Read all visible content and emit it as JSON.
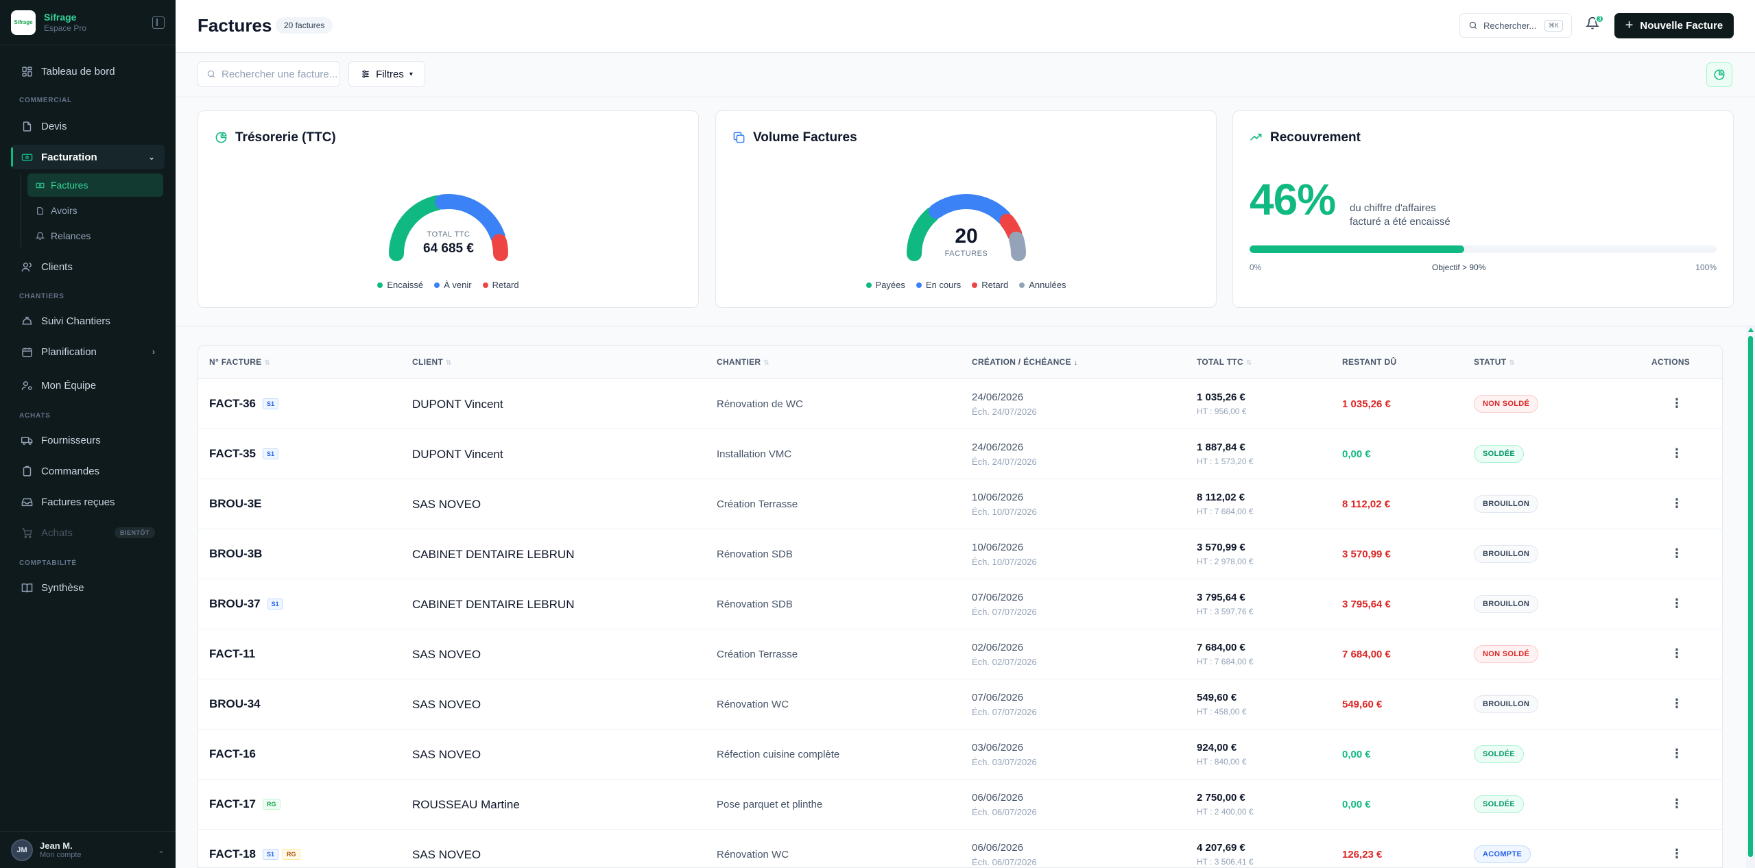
{
  "brand": {
    "name": "Sifrage",
    "subtitle": "Espace Pro",
    "logo_text": "Sifrage"
  },
  "sidebar": {
    "dashboard": "Tableau de bord",
    "section_commercial": "COMMERCIAL",
    "devis": "Devis",
    "facturation": "Facturation",
    "factures": "Factures",
    "avoirs": "Avoirs",
    "relances": "Relances",
    "clients": "Clients",
    "section_chantiers": "CHANTIERS",
    "suivi_chantiers": "Suivi Chantiers",
    "planification": "Planification",
    "equipe": "Mon Équipe",
    "section_achats": "ACHATS",
    "fournisseurs": "Fournisseurs",
    "commandes": "Commandes",
    "factures_recues": "Factures reçues",
    "achats": "Achats",
    "bientot": "BIENTÔT",
    "section_compta": "COMPTABILITÉ",
    "synthese": "Synthèse"
  },
  "user": {
    "initials": "JM",
    "name": "Jean M.",
    "subtitle": "Mon compte"
  },
  "header": {
    "title": "Factures",
    "count": "20 factures",
    "search_label": "Rechercher...",
    "search_kbd": "⌘K",
    "notif_count": "3",
    "new_button": "Nouvelle Facture"
  },
  "toolbar": {
    "search_placeholder": "Rechercher une facture...",
    "filters": "Filtres"
  },
  "cards": {
    "tresorerie": {
      "title": "Trésorerie (TTC)",
      "total_label": "TOTAL TTC",
      "total_value": "64 685 €",
      "legend": [
        "Encaissé",
        "À venir",
        "Retard"
      ],
      "colors": [
        "#10b981",
        "#3b82f6",
        "#ef4444"
      ],
      "segments": [
        0.46,
        0.46,
        0.08
      ]
    },
    "volume": {
      "title": "Volume Factures",
      "count": "20",
      "count_label": "FACTURES",
      "legend": [
        "Payées",
        "En cours",
        "Retard",
        "Annulées"
      ],
      "colors": [
        "#10b981",
        "#3b82f6",
        "#ef4444",
        "#94a3b8"
      ],
      "segments": [
        0.3,
        0.5,
        0.1,
        0.1
      ]
    },
    "recouvrement": {
      "title": "Recouvrement",
      "percent": "46%",
      "progress": 0.46,
      "desc": "du chiffre d'affaires facturé a été encaissé",
      "lbl_min": "0%",
      "lbl_target": "Objectif > 90%",
      "lbl_max": "100%"
    }
  },
  "table": {
    "headers": {
      "num": "N° FACTURE",
      "client": "CLIENT",
      "chantier": "CHANTIER",
      "dates": "CRÉATION / ÉCHÉANCE",
      "ttc": "TOTAL TTC",
      "rest": "RESTANT DÛ",
      "status": "STATUT",
      "actions": "ACTIONS"
    },
    "rows": [
      {
        "num": "FACT-36",
        "tags": [
          "S1"
        ],
        "client": "DUPONT Vincent",
        "chantier": "Rénovation de WC",
        "created": "24/06/2026",
        "due": "Éch. 24/07/2026",
        "ttc": "1 035,26 €",
        "ht": "HT : 956,00 €",
        "rest": "1 035,26 €",
        "rest_state": "due",
        "status": "NON SOLDÉ",
        "status_kind": "nonsolde"
      },
      {
        "num": "FACT-35",
        "tags": [
          "S1"
        ],
        "client": "DUPONT Vincent",
        "chantier": "Installation VMC",
        "created": "24/06/2026",
        "due": "Éch. 24/07/2026",
        "ttc": "1 887,84 €",
        "ht": "HT : 1 573,20 €",
        "rest": "0,00 €",
        "rest_state": "ok",
        "status": "SOLDÉE",
        "status_kind": "solde"
      },
      {
        "num": "BROU-3E",
        "tags": [],
        "client": "SAS NOVEO",
        "chantier": "Création Terrasse",
        "created": "10/06/2026",
        "due": "Éch. 10/07/2026",
        "ttc": "8 112,02 €",
        "ht": "HT : 7 684,00 €",
        "rest": "8 112,02 €",
        "rest_state": "due",
        "status": "BROUILLON",
        "status_kind": "brouillon"
      },
      {
        "num": "BROU-3B",
        "tags": [],
        "client": "CABINET DENTAIRE LEBRUN",
        "chantier": "Rénovation SDB",
        "created": "10/06/2026",
        "due": "Éch. 10/07/2026",
        "ttc": "3 570,99 €",
        "ht": "HT : 2 978,00 €",
        "rest": "3 570,99 €",
        "rest_state": "due",
        "status": "BROUILLON",
        "status_kind": "brouillon"
      },
      {
        "num": "BROU-37",
        "tags": [
          "S1"
        ],
        "client": "CABINET DENTAIRE LEBRUN",
        "chantier": "Rénovation SDB",
        "created": "07/06/2026",
        "due": "Éch. 07/07/2026",
        "ttc": "3 795,64 €",
        "ht": "HT : 3 597,76 €",
        "rest": "3 795,64 €",
        "rest_state": "due",
        "status": "BROUILLON",
        "status_kind": "brouillon"
      },
      {
        "num": "FACT-11",
        "tags": [],
        "client": "SAS NOVEO",
        "chantier": "Création Terrasse",
        "created": "02/06/2026",
        "due": "Éch. 02/07/2026",
        "ttc": "7 684,00 €",
        "ht": "HT : 7 684,00 €",
        "rest": "7 684,00 €",
        "rest_state": "due",
        "status": "NON SOLDÉ",
        "status_kind": "nonsolde"
      },
      {
        "num": "BROU-34",
        "tags": [],
        "client": "SAS NOVEO",
        "chantier": "Rénovation WC",
        "created": "07/06/2026",
        "due": "Éch. 07/07/2026",
        "ttc": "549,60 €",
        "ht": "HT : 458,00 €",
        "rest": "549,60 €",
        "rest_state": "due",
        "status": "BROUILLON",
        "status_kind": "brouillon"
      },
      {
        "num": "FACT-16",
        "tags": [],
        "client": "SAS NOVEO",
        "chantier": "Réfection cuisine complète",
        "created": "03/06/2026",
        "due": "Éch. 03/07/2026",
        "ttc": "924,00 €",
        "ht": "HT : 840,00 €",
        "rest": "0,00 €",
        "rest_state": "ok",
        "status": "SOLDÉE",
        "status_kind": "solde"
      },
      {
        "num": "FACT-17",
        "tags": [
          "RG"
        ],
        "client": "ROUSSEAU Martine",
        "chantier": "Pose parquet et plinthe",
        "created": "06/06/2026",
        "due": "Éch. 06/07/2026",
        "ttc": "2 750,00 €",
        "ht": "HT : 2 400,00 €",
        "rest": "0,00 €",
        "rest_state": "ok",
        "status": "SOLDÉE",
        "status_kind": "solde"
      },
      {
        "num": "FACT-18",
        "tags": [
          "S1",
          "RG"
        ],
        "client": "SAS NOVEO",
        "chantier": "Rénovation WC",
        "created": "06/06/2026",
        "due": "Éch. 06/07/2026",
        "ttc": "4 207,69 €",
        "ht": "HT : 3 506,41 €",
        "rest": "126,23 €",
        "rest_state": "due",
        "status": "ACOMPTE",
        "status_kind": "acompte"
      }
    ]
  }
}
